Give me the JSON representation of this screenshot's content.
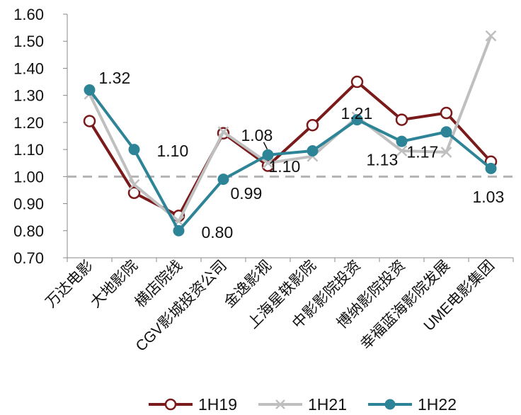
{
  "chart_data": {
    "type": "line",
    "title": "",
    "xlabel": "",
    "ylabel": "",
    "ylim": [
      0.7,
      1.6
    ],
    "ytick_step": 0.1,
    "grid": false,
    "legend_position": "bottom",
    "categories": [
      "万达电影",
      "大地影院",
      "横店院线",
      "CGV影城投资公司",
      "金逸影视",
      "上海星轶影院",
      "中影影院投资",
      "博纳影院投资",
      "幸福蓝海影院发展",
      "UME电影集团"
    ],
    "series": [
      {
        "name": "1H19",
        "color": "#7a1a1a",
        "marker": "open-circle",
        "values": [
          1.205,
          0.94,
          0.855,
          1.16,
          1.04,
          1.19,
          1.35,
          1.21,
          1.235,
          1.055
        ]
      },
      {
        "name": "1H21",
        "color": "#bfbfbf",
        "marker": "x",
        "values": [
          1.305,
          0.97,
          0.835,
          1.165,
          1.05,
          1.075,
          1.22,
          1.095,
          1.09,
          1.52
        ]
      },
      {
        "name": "1H22",
        "color": "#2e8497",
        "marker": "filled-circle",
        "values": [
          1.32,
          1.1,
          0.8,
          0.99,
          1.08,
          1.095,
          1.21,
          1.13,
          1.165,
          1.03
        ]
      }
    ],
    "reference_line": {
      "value": 1.0,
      "style": "dashed",
      "color": "#b3b3b3"
    },
    "data_labels": [
      "1.32",
      "1.10",
      "0.80",
      "0.99",
      "1.08",
      "1.10",
      "1.21",
      "1.13",
      "1.17",
      "1.03"
    ]
  }
}
